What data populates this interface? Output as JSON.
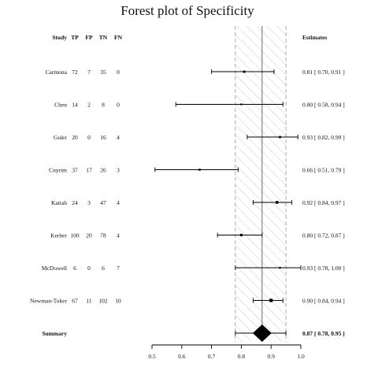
{
  "chart_data": {
    "type": "forest",
    "title": "Forest plot of Specificity",
    "columns": [
      "Study",
      "TP",
      "FP",
      "TN",
      "FN"
    ],
    "estimates_header": "Estimates",
    "x_ticks": [
      0.5,
      0.6,
      0.7,
      0.8,
      0.9,
      1.0
    ],
    "xlim": [
      0.5,
      1.0
    ],
    "tick_labels": [
      "0.5",
      "0.6",
      "0.7",
      "0.8",
      "0.9",
      "1.0"
    ],
    "studies": [
      {
        "name": "Carmona",
        "tp": "72",
        "fp": "7",
        "tn": "35",
        "fn": "0",
        "est": 0.81,
        "lo": 0.7,
        "hi": 0.91,
        "weight": 0.3,
        "label": "0.81 [ 0.70, 0.91 ]"
      },
      {
        "name": "Chen",
        "tp": "14",
        "fp": "2",
        "tn": "8",
        "fn": "0",
        "est": 0.8,
        "lo": 0.58,
        "hi": 0.94,
        "weight": 0.1,
        "label": "0.80 [ 0.58, 0.94 ]"
      },
      {
        "name": "Guler",
        "tp": "20",
        "fp": "0",
        "tn": "16",
        "fn": "4",
        "est": 0.93,
        "lo": 0.82,
        "hi": 0.99,
        "weight": 0.25,
        "label": "0.93 [ 0.82, 0.99 ]"
      },
      {
        "name": "Cnyrim",
        "tp": "37",
        "fp": "17",
        "tn": "26",
        "fn": "3",
        "est": 0.66,
        "lo": 0.51,
        "hi": 0.79,
        "weight": 0.2,
        "label": "0.66 [ 0.51, 0.79 ]"
      },
      {
        "name": "Kattah",
        "tp": "24",
        "fp": "3",
        "tn": "47",
        "fn": "4",
        "est": 0.92,
        "lo": 0.84,
        "hi": 0.97,
        "weight": 0.55,
        "label": "0.92 [ 0.84, 0.97 ]"
      },
      {
        "name": "Kerber",
        "tp": "100",
        "fp": "20",
        "tn": "78",
        "fn": "4",
        "est": 0.8,
        "lo": 0.72,
        "hi": 0.87,
        "weight": 0.45,
        "label": "0.80 [ 0.72, 0.87 ]"
      },
      {
        "name": "McDowell",
        "tp": "6",
        "fp": "0",
        "tn": "6",
        "fn": "7",
        "est": 0.93,
        "lo": 0.78,
        "hi": 1.0,
        "weight": 0.12,
        "label": "0.93 [ 0.78, 1.00 ]"
      },
      {
        "name": "Newman-Toker",
        "tp": "67",
        "fp": "11",
        "tn": "102",
        "fn": "10",
        "est": 0.9,
        "lo": 0.84,
        "hi": 0.94,
        "weight": 1.0,
        "label": "0.90 [ 0.84, 0.94 ]"
      }
    ],
    "summary": {
      "name": "Summary",
      "est": 0.87,
      "lo": 0.78,
      "hi": 0.95,
      "label": "0.87 [ 0.78, 0.95 ]"
    }
  }
}
